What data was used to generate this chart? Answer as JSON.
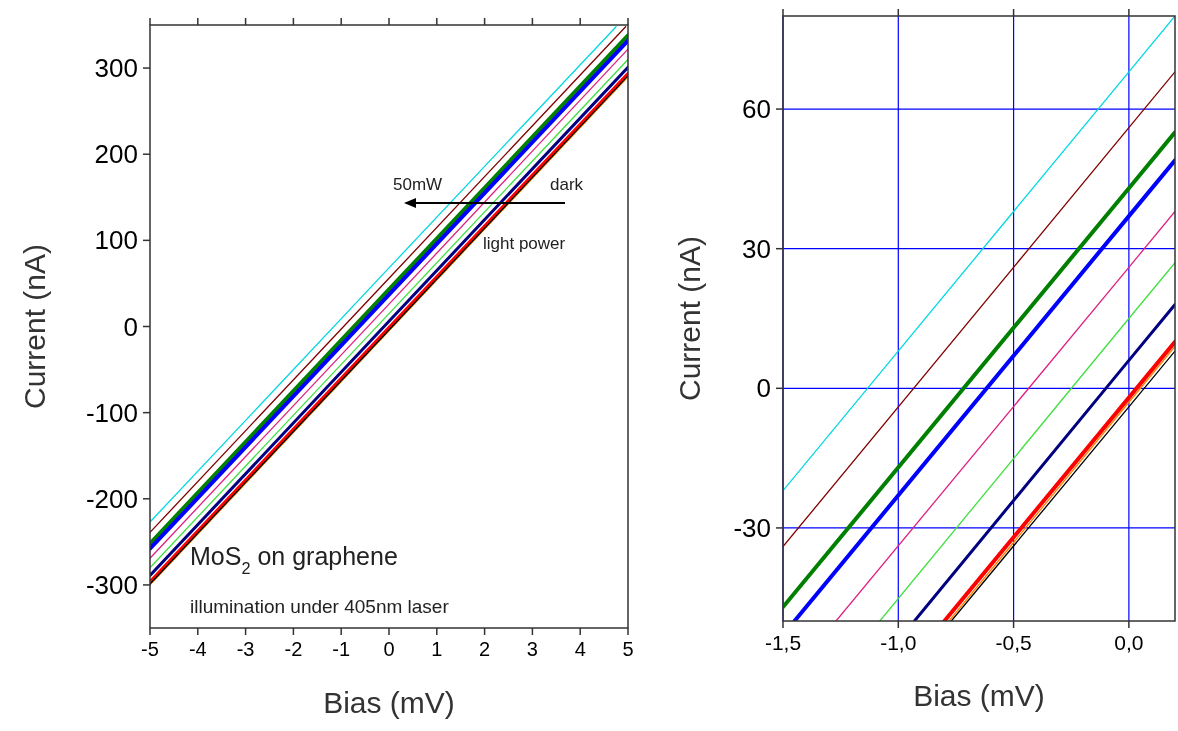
{
  "chart_data": [
    {
      "type": "line",
      "xlabel": "Bias (mV)",
      "ylabel": "Current (nA)",
      "xlim": [
        -5,
        5
      ],
      "ylim": [
        -350,
        350
      ],
      "xticks": [
        -5,
        -4,
        -3,
        -2,
        -1,
        0,
        1,
        2,
        3,
        4,
        5
      ],
      "yticks": [
        -300,
        -200,
        -100,
        0,
        100,
        200,
        300
      ],
      "grid": false,
      "marker": "none",
      "line_style": "solid",
      "annotations": [
        "50mW",
        "dark",
        "light power",
        "MoS$_{2}$ on graphene",
        "illumination under 405nm laser"
      ],
      "series": [
        {
          "color": "#00d8e0",
          "x": [
            -5,
            0,
            4.75
          ],
          "values": [
            -227,
            68,
            348
          ]
        },
        {
          "color": "#800000",
          "x": [
            -5,
            0,
            4.95
          ],
          "values": [
            -239,
            56,
            348
          ]
        },
        {
          "color": "#008000",
          "x": [
            -5,
            0,
            5
          ],
          "values": [
            -252,
            43,
            338
          ]
        },
        {
          "color": "#0000ff",
          "x": [
            -5,
            0,
            5
          ],
          "values": [
            -258,
            37,
            332
          ]
        },
        {
          "color": "#e0207f",
          "x": [
            -5,
            0,
            5
          ],
          "values": [
            -269,
            26,
            322
          ]
        },
        {
          "color": "#40e040",
          "x": [
            -5,
            0,
            5
          ],
          "values": [
            -280,
            15,
            310
          ]
        },
        {
          "color": "#000080",
          "x": [
            -5,
            0,
            5
          ],
          "values": [
            -289,
            6,
            301
          ]
        },
        {
          "color": "#ff0000",
          "x": [
            -5,
            0,
            5
          ],
          "values": [
            -297,
            -2,
            293
          ]
        },
        {
          "color": "#ff8000",
          "x": [
            -5,
            0,
            5
          ],
          "values": [
            -300,
            -5,
            290
          ]
        },
        {
          "color": "#000000",
          "x": [
            -5,
            0,
            5
          ],
          "values": [
            -299,
            -4,
            291
          ]
        }
      ]
    },
    {
      "type": "line",
      "xlabel": "Bias (mV)",
      "ylabel": "Current (nA)",
      "xlim": [
        -1.5,
        0.2
      ],
      "ylim": [
        -50,
        80
      ],
      "xticks": [
        {
          "value": -1.5,
          "label": "-1,5"
        },
        {
          "value": -1,
          "label": "-1,0"
        },
        {
          "value": -0.5,
          "label": "-0,5"
        },
        {
          "value": 0,
          "label": "0,0"
        }
      ],
      "yticks": [
        -30,
        0,
        30,
        60
      ],
      "grid": true,
      "marker": "none",
      "line_style": "solid",
      "series": [
        {
          "color": "#00d8e0",
          "x": [
            -1.5,
            0,
            0.2
          ],
          "values": [
            -22,
            68,
            80
          ]
        },
        {
          "color": "#800000",
          "x": [
            -1.5,
            0,
            0.2
          ],
          "values": [
            -34,
            56,
            68
          ]
        },
        {
          "color": "#008000",
          "x": [
            -1.5,
            0,
            0.2
          ],
          "values": [
            -47,
            43,
            55
          ]
        },
        {
          "color": "#0000ff",
          "x": [
            -1.45,
            0,
            0.2
          ],
          "values": [
            -50,
            37,
            49
          ]
        },
        {
          "color": "#e0207f",
          "x": [
            -1.27,
            0,
            0.2
          ],
          "values": [
            -50,
            26,
            38
          ]
        },
        {
          "color": "#40e040",
          "x": [
            -1.08,
            0,
            0.2
          ],
          "values": [
            -50,
            15,
            27
          ]
        },
        {
          "color": "#000080",
          "x": [
            -0.93,
            0,
            0.2
          ],
          "values": [
            -50,
            6,
            18
          ]
        },
        {
          "color": "#ff0000",
          "x": [
            -0.8,
            0,
            0.2
          ],
          "values": [
            -50,
            -2,
            10
          ]
        },
        {
          "color": "#ff8000",
          "x": [
            -0.78,
            0,
            0.2
          ],
          "values": [
            -50,
            -3,
            9
          ]
        },
        {
          "color": "#000000",
          "x": [
            -0.77,
            0,
            0.2
          ],
          "values": [
            -50,
            -4,
            8
          ]
        }
      ]
    }
  ]
}
